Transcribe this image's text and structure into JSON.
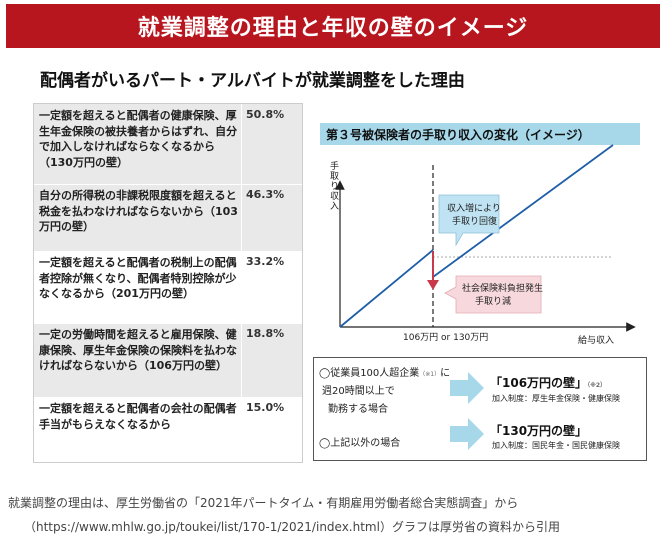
{
  "banner": {
    "title": "就業調整の理由と年収の壁のイメージ"
  },
  "subtitle": "配偶者がいるパート・アルバイトが就業調整をした理由",
  "reasons": [
    {
      "text": "一定額を超えると配偶者の健康保険、厚生年金保険の被扶養者からはずれ、自分で加入しなければならなくなるから（130万円の壁）",
      "pct": "50.8%"
    },
    {
      "text": "自分の所得税の非課税限度額を超えると税金を払わなければならないから（103万円の壁）",
      "pct": "46.3%"
    },
    {
      "text": "一定額を超えると配偶者の税制上の配偶者控除が無くなり、配偶者特別控除が少なくなるから（201万円の壁）",
      "pct": "33.2%"
    },
    {
      "text": "一定の労働時間を超えると雇用保険、健康保険、厚生年金保険の保険料を払わなければならないから（106万円の壁）",
      "pct": "18.8%"
    },
    {
      "text": "一定額を超えると配偶者の会社の配偶者手当がもらえなくなるから",
      "pct": "15.0%"
    }
  ],
  "chart_title": "第３号被保険者の手取り収入の変化（イメージ）",
  "chart_data": {
    "type": "line",
    "title": "第３号被保険者の手取り収入の変化（イメージ）",
    "ylabel": "手取り収入",
    "xlabel": "給与収入",
    "xtick": "106万円 or 130万円",
    "annotations": [
      "収入増により手取り回復",
      "社会保険料負担発生手取り減"
    ],
    "colors": {
      "line": "#1f5fa8",
      "drop": "#c83a4a",
      "callout_blue": "#bfe3f3",
      "callout_red": "#f7d9dd"
    }
  },
  "conditions": {
    "c1_line1": "◯従業員100人超企業",
    "c1_note": "（※1）",
    "c1_suffix": "に",
    "c1_line2": "週20時間以上で",
    "c1_line3": "勤務する場合",
    "c1_result": "「106万円の壁」",
    "c1_result_note": "（※2）",
    "c1_detail": "加入制度：厚生年金保険・健康保険",
    "c2_line": "◯上記以外の場合",
    "c2_result": "「130万円の壁」",
    "c2_detail": "加入制度：国民年金・国民健康保険"
  },
  "footer": {
    "line1": "就業調整の理由は、厚生労働省の「2021年パートタイム・有期雇用労働者総合実態調査」から",
    "line2": "（https://www.mhlw.go.jp/toukei/list/170-1/2021/index.html）グラフは厚労省の資料から引用"
  }
}
